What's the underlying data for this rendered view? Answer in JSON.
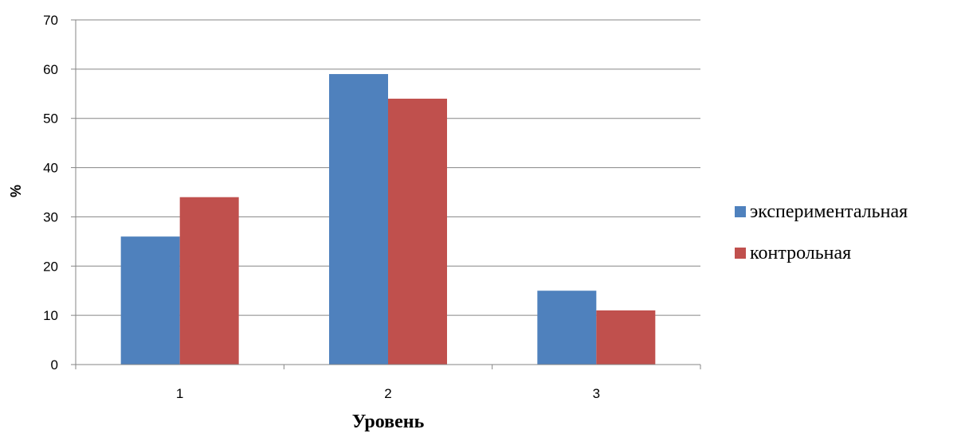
{
  "chart_data": {
    "type": "bar",
    "categories": [
      "1",
      "2",
      "3"
    ],
    "series": [
      {
        "name": "экспериментальная",
        "values": [
          26,
          59,
          15
        ],
        "color": "#4F81BD"
      },
      {
        "name": "контрольная",
        "values": [
          34,
          54,
          11
        ],
        "color": "#C0504D"
      }
    ],
    "title": "",
    "xlabel": "Уровень",
    "ylabel": "%",
    "ylim": [
      0,
      70
    ],
    "yticks": [
      "0",
      "10",
      "20",
      "30",
      "40",
      "50",
      "60",
      "70"
    ],
    "grid": true,
    "legend_position": "right"
  }
}
